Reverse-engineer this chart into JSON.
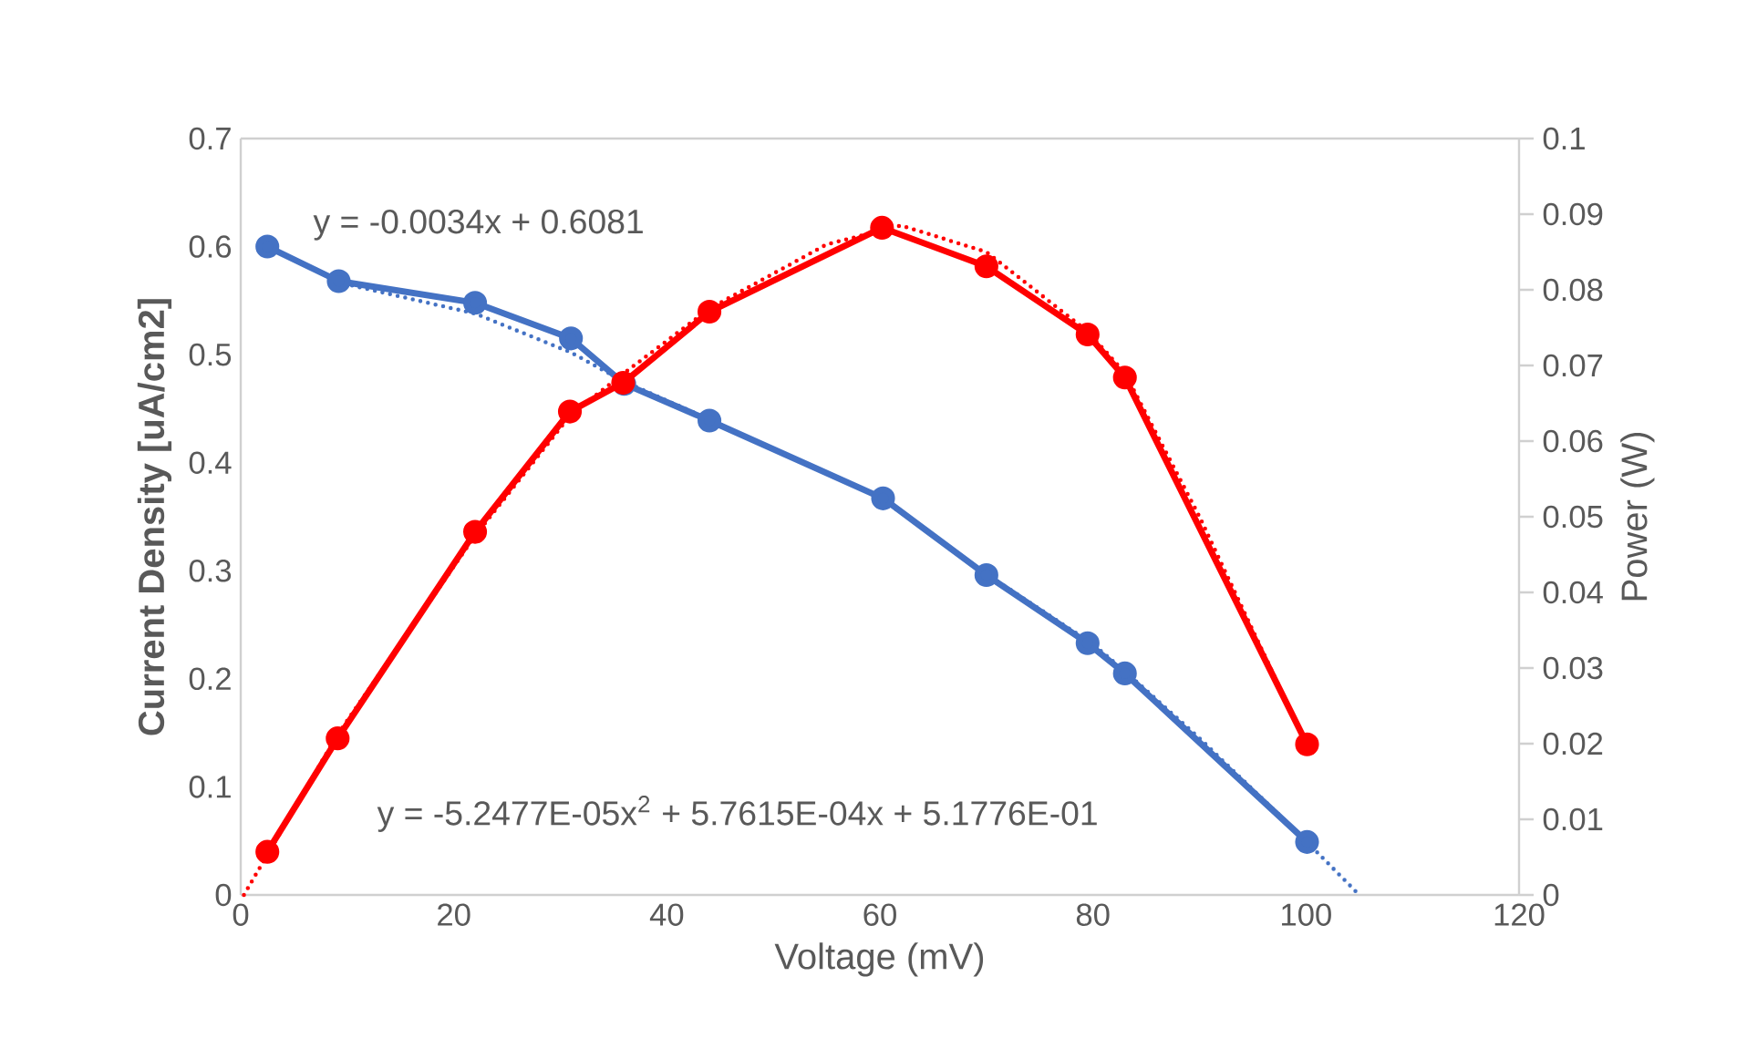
{
  "chart_data": {
    "type": "line",
    "xlabel": "Voltage (mV)",
    "ylabel": "Current Density [uA/cm2]",
    "y2label": "Power (W)",
    "xlim": [
      0,
      120
    ],
    "xticks": [
      0,
      20,
      40,
      60,
      80,
      100,
      120
    ],
    "ylim": [
      0,
      0.7
    ],
    "yticks": [
      0,
      0.1,
      0.2,
      0.3,
      0.4,
      0.5,
      0.6,
      0.7
    ],
    "y2lim": [
      0,
      0.1
    ],
    "y2ticks": [
      0,
      0.01,
      0.02,
      0.03,
      0.04,
      0.05,
      0.06,
      0.07,
      0.08,
      0.09,
      0.1
    ],
    "annotations": [
      "y = -0.0034x + 0.6081",
      "y = -5.2477E-05x$^{2}$ + 5.7615E-04x + 5.1776E-01"
    ],
    "series": [
      {
        "color": "#4472c4",
        "marker": "circle",
        "line_style": "solid",
        "x": [
          2.5,
          9.2,
          22,
          31,
          36,
          44,
          60.3,
          70,
          79.5,
          83,
          100.1
        ],
        "values": [
          0.6,
          0.568,
          0.548,
          0.515,
          0.473,
          0.439,
          0.367,
          0.296,
          0.233,
          0.205,
          0.049
        ]
      },
      {
        "color": "#ff0000",
        "marker": "circle",
        "line_style": "solid",
        "axis": "y2",
        "x": [
          2.5,
          9.1,
          22,
          30.9,
          35.9,
          44,
          60.2,
          70,
          79.5,
          83,
          100.1
        ],
        "values": [
          0.0057,
          0.0207,
          0.048,
          0.0639,
          0.0677,
          0.0771,
          0.0882,
          0.0831,
          0.0741,
          0.0684,
          0.0199
        ]
      },
      {
        "color": "#4472c4",
        "marker": "none",
        "line_style": "dotted",
        "x": [
          2.5,
          10,
          22,
          31,
          36,
          44,
          50,
          60,
          70,
          80,
          83,
          90,
          100,
          105
        ],
        "values": [
          0.6,
          0.565,
          0.538,
          0.502,
          0.475,
          0.44,
          0.412,
          0.368,
          0.297,
          0.232,
          0.207,
          0.145,
          0.05,
          0
        ]
      },
      {
        "color": "#ff0000",
        "marker": "none",
        "line_style": "dotted",
        "axis": "y2",
        "x": [
          0.3,
          9,
          22,
          31,
          36,
          44,
          55,
          62,
          70,
          79.5,
          83,
          90,
          100
        ],
        "values": [
          0,
          0.021,
          0.0475,
          0.0635,
          0.069,
          0.0775,
          0.086,
          0.0885,
          0.085,
          0.0745,
          0.069,
          0.05,
          0.02
        ]
      }
    ]
  }
}
